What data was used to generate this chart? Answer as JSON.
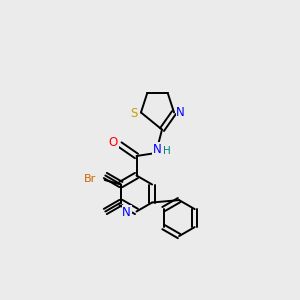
{
  "bg_color": "#ebebeb",
  "bond_color": "#000000",
  "atom_colors": {
    "S": "#c8a000",
    "N": "#0000ff",
    "O": "#ff0000",
    "Br": "#cc6600",
    "H": "#008080"
  },
  "figsize": [
    3.0,
    3.0
  ],
  "dpi": 100
}
